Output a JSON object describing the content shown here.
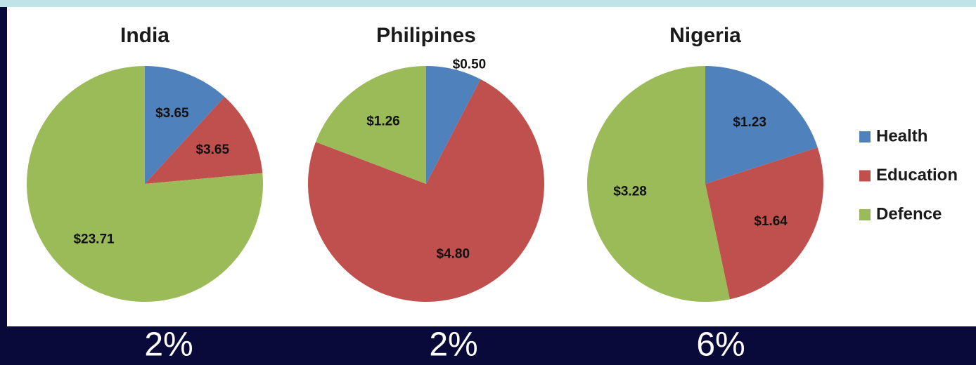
{
  "chart_data": [
    {
      "type": "pie",
      "title": "India",
      "categories": [
        "Health",
        "Education",
        "Defence"
      ],
      "values": [
        3.65,
        3.65,
        23.71
      ],
      "value_labels": [
        "$3.65",
        "$3.65",
        "$23.71"
      ],
      "colors": [
        "#4f81bd",
        "#c0504d",
        "#9bbb59"
      ],
      "annotation": "2%"
    },
    {
      "type": "pie",
      "title": "Philipines",
      "categories": [
        "Health",
        "Education",
        "Defence"
      ],
      "values": [
        0.5,
        4.8,
        1.26
      ],
      "value_labels": [
        "$0.50",
        "$4.80",
        "$1.26"
      ],
      "colors": [
        "#4f81bd",
        "#c0504d",
        "#9bbb59"
      ],
      "annotation": "2%"
    },
    {
      "type": "pie",
      "title": "Nigeria",
      "categories": [
        "Health",
        "Education",
        "Defence"
      ],
      "values": [
        1.23,
        1.64,
        3.28
      ],
      "value_labels": [
        "$1.23",
        "$1.64",
        "$3.28"
      ],
      "colors": [
        "#4f81bd",
        "#c0504d",
        "#9bbb59"
      ],
      "annotation": "6%",
      "legend": "right"
    }
  ]
}
